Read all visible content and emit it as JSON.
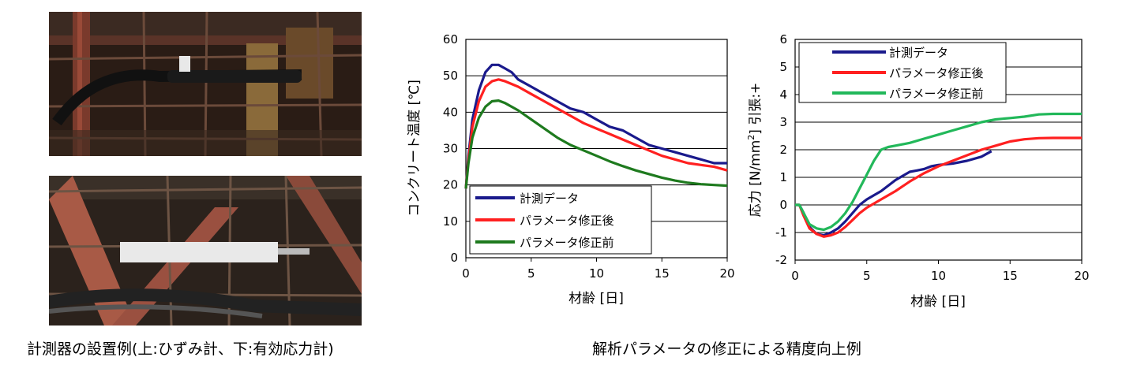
{
  "captions": {
    "left": "計測器の設置例(上:ひずみ計、下:有効応力計)",
    "right": "解析パラメータの修正による精度向上例"
  },
  "photos": {
    "top_alt": "計測器の設置例 上 ひずみ計",
    "bottom_alt": "計測器の設置例 下 有効応力計"
  },
  "chart_data": [
    {
      "type": "line",
      "title": "",
      "xlabel": "材齢 [日]",
      "ylabel": "コンクリート温度 [℃]",
      "xlim": [
        0,
        20
      ],
      "ylim": [
        0,
        60
      ],
      "xticks": [
        0,
        5,
        10,
        15,
        20
      ],
      "yticks": [
        0,
        10,
        20,
        30,
        40,
        50,
        60
      ],
      "grid": "horizontal",
      "legend": "bottom-left",
      "series": [
        {
          "name": "計測データ",
          "color": "#1a1a8c",
          "x": [
            0,
            0.2,
            0.5,
            1,
            1.5,
            2,
            2.5,
            3,
            3.5,
            4,
            5,
            6,
            7,
            8,
            9,
            10,
            11,
            12,
            13,
            14,
            15,
            16,
            17,
            18,
            19,
            20
          ],
          "y": [
            19,
            28,
            38,
            46,
            51,
            53,
            53,
            52,
            51,
            49,
            47,
            45,
            43,
            41,
            40,
            38,
            36,
            35,
            33,
            31,
            30,
            29,
            28,
            27,
            26,
            26
          ]
        },
        {
          "name": "パラメータ修正後",
          "color": "#ff2020",
          "x": [
            0,
            0.2,
            0.5,
            1,
            1.5,
            2,
            2.5,
            3,
            4,
            5,
            6,
            7,
            8,
            9,
            10,
            11,
            12,
            13,
            14,
            15,
            16,
            17,
            18,
            19,
            20
          ],
          "y": [
            19,
            27,
            36,
            43,
            47,
            48.5,
            49,
            48.5,
            47,
            45,
            43,
            41,
            39,
            37,
            35.5,
            34,
            32.5,
            31,
            29.5,
            28,
            27,
            26,
            25.5,
            25,
            24
          ]
        },
        {
          "name": "パラメータ修正前",
          "color": "#1e7a1e",
          "x": [
            0,
            0.2,
            0.5,
            1,
            1.5,
            2,
            2.5,
            3,
            4,
            5,
            6,
            7,
            8,
            9,
            10,
            11,
            12,
            13,
            14,
            15,
            16,
            17,
            18,
            19,
            20
          ],
          "y": [
            19,
            26,
            33,
            38.5,
            41.5,
            43,
            43.2,
            42.5,
            40.5,
            38,
            35.5,
            33,
            31,
            29.5,
            28,
            26.5,
            25.2,
            24,
            23,
            22,
            21.2,
            20.6,
            20.2,
            20,
            19.8
          ]
        }
      ]
    },
    {
      "type": "line",
      "title": "",
      "xlabel": "材齢 [日]",
      "ylabel": "応力 [N/mm²] 引張:+",
      "ylabel_main": "応力 [N/mm",
      "ylabel_sup": "2",
      "ylabel_tail": "] 引張:+",
      "xlim": [
        0,
        20
      ],
      "ylim": [
        -2,
        6
      ],
      "xticks": [
        0,
        5,
        10,
        15,
        20
      ],
      "yticks": [
        -2,
        -1,
        0,
        1,
        2,
        3,
        4,
        5,
        6
      ],
      "grid": "horizontal",
      "legend": "top-left",
      "series": [
        {
          "name": "計測データ",
          "color": "#1a1a8c",
          "x": [
            0,
            0.3,
            0.6,
            1,
            1.5,
            2,
            2.5,
            3,
            3.5,
            4,
            4.5,
            5,
            5.5,
            6,
            6.5,
            7,
            7.5,
            8,
            8.5,
            9,
            9.5,
            10,
            11,
            12,
            13,
            13.7
          ],
          "y": [
            0,
            0,
            -0.3,
            -0.8,
            -1.05,
            -1.1,
            -1.0,
            -0.85,
            -0.6,
            -0.3,
            0.0,
            0.2,
            0.35,
            0.5,
            0.7,
            0.9,
            1.05,
            1.2,
            1.25,
            1.3,
            1.4,
            1.45,
            1.5,
            1.6,
            1.75,
            1.95
          ]
        },
        {
          "name": "パラメータ修正後",
          "color": "#ff2020",
          "x": [
            0,
            0.3,
            0.6,
            1,
            1.5,
            2,
            2.5,
            3,
            3.5,
            4,
            4.5,
            5,
            6,
            7,
            8,
            9,
            10,
            11,
            12,
            13,
            14,
            15,
            16,
            17,
            18,
            19,
            20
          ],
          "y": [
            0,
            0,
            -0.4,
            -0.85,
            -1.05,
            -1.15,
            -1.1,
            -1.0,
            -0.8,
            -0.55,
            -0.3,
            -0.1,
            0.2,
            0.5,
            0.85,
            1.15,
            1.4,
            1.6,
            1.8,
            2.0,
            2.15,
            2.3,
            2.38,
            2.42,
            2.43,
            2.43,
            2.43
          ]
        },
        {
          "name": "パラメータ修正前",
          "color": "#22b85a",
          "x": [
            0,
            0.3,
            0.6,
            1,
            1.5,
            2,
            2.5,
            3,
            3.5,
            4,
            4.5,
            5,
            5.5,
            6,
            6.5,
            7,
            8,
            9,
            10,
            11,
            12,
            13,
            14,
            15,
            16,
            17,
            18,
            19,
            20
          ],
          "y": [
            0,
            0,
            -0.3,
            -0.7,
            -0.85,
            -0.9,
            -0.8,
            -0.6,
            -0.3,
            0.1,
            0.6,
            1.1,
            1.6,
            2.0,
            2.1,
            2.15,
            2.25,
            2.4,
            2.55,
            2.7,
            2.85,
            3.0,
            3.1,
            3.15,
            3.2,
            3.28,
            3.3,
            3.3,
            3.3
          ]
        }
      ]
    }
  ]
}
